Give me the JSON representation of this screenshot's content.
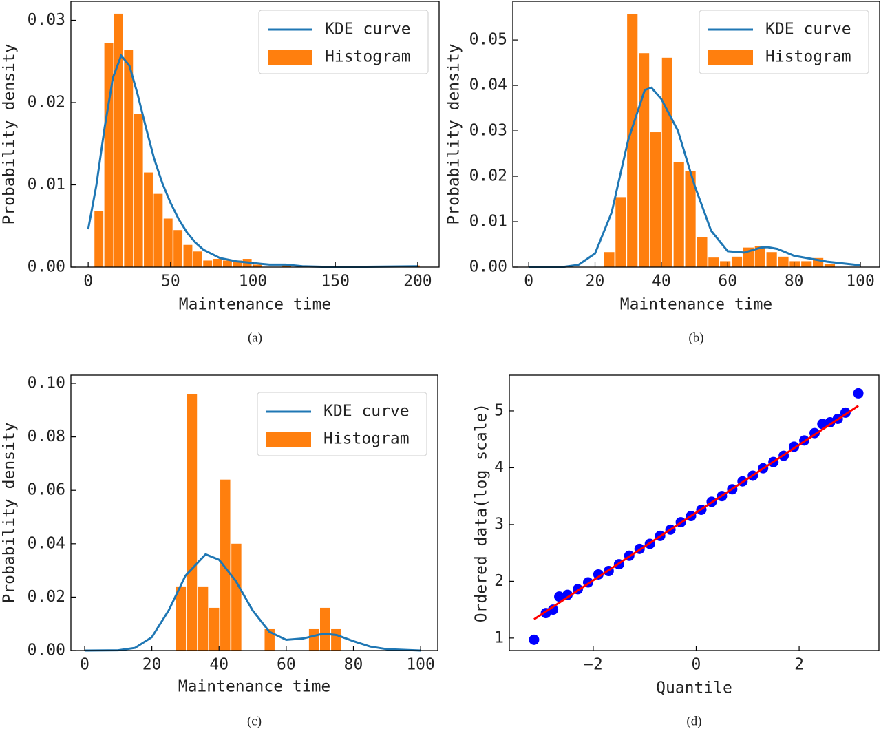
{
  "chart_data": [
    {
      "type": "histogram",
      "caption": "(a)",
      "xlabel": "Maintenance time",
      "ylabel": "Probability density",
      "xlim": [
        -10.5,
        213
      ],
      "ylim": [
        0,
        0.0323
      ],
      "xticks": [
        0,
        50,
        100,
        150,
        200
      ],
      "yticks": [
        {
          "value": 0,
          "label": "0.00"
        },
        {
          "value": 0.01,
          "label": "0.01"
        },
        {
          "value": 0.02,
          "label": "0.02"
        },
        {
          "value": 0.03,
          "label": "0.03"
        }
      ],
      "legend": "upper right",
      "series": [
        {
          "name": "KDE curve",
          "type": "line",
          "color": "#1f77b4",
          "x": [
            0,
            5,
            10,
            15,
            20,
            25,
            30,
            35,
            40,
            45,
            50,
            55,
            60,
            65,
            70,
            80,
            90,
            100,
            110,
            120,
            130,
            150,
            200
          ],
          "values": [
            0.0046,
            0.01,
            0.017,
            0.023,
            0.0257,
            0.0245,
            0.021,
            0.017,
            0.0132,
            0.0102,
            0.0078,
            0.0058,
            0.0042,
            0.003,
            0.0021,
            0.0011,
            0.0007,
            0.0005,
            0.0003,
            0.0003,
            0.0001,
            0,
            0.0001
          ]
        },
        {
          "name": "Histogram",
          "type": "bar",
          "color": "#ff7f0e",
          "bins": [
            3.5,
            9.5,
            15.5,
            21.5,
            27.5,
            33.5,
            39.5,
            45.5,
            51.5,
            57.5,
            63.5,
            69.5,
            75.5,
            81.5,
            87.5,
            93.5,
            99.5,
            105.5,
            111.5,
            117.5,
            123.5,
            129.5,
            135.5,
            141.5,
            147.5,
            153.5,
            159.5,
            165.5,
            171.5,
            177.5,
            183.5,
            189.5,
            195.5,
            201.5
          ],
          "values": [
            0.0068,
            0.0272,
            0.0308,
            0.0264,
            0.0186,
            0.0115,
            0.0089,
            0.0059,
            0.0045,
            0.0027,
            0.0019,
            0.0008,
            0.001,
            0.0008,
            0.0008,
            0.001,
            0.0003,
            0,
            0,
            0.0004,
            0,
            0,
            0,
            0,
            0,
            0,
            0,
            0,
            0,
            0,
            0,
            0,
            0.0002
          ]
        }
      ]
    },
    {
      "type": "histogram",
      "caption": "(b)",
      "xlabel": "Maintenance time",
      "ylabel": "Probability density",
      "xlim": [
        -4.8,
        105.8
      ],
      "ylim": [
        0,
        0.0585
      ],
      "xticks": [
        0,
        20,
        40,
        60,
        80,
        100
      ],
      "yticks": [
        {
          "value": 0,
          "label": "0.00"
        },
        {
          "value": 0.01,
          "label": "0.01"
        },
        {
          "value": 0.02,
          "label": "0.02"
        },
        {
          "value": 0.03,
          "label": "0.03"
        },
        {
          "value": 0.04,
          "label": "0.04"
        },
        {
          "value": 0.05,
          "label": "0.05"
        }
      ],
      "legend": "upper right",
      "series": [
        {
          "name": "KDE curve",
          "type": "line",
          "color": "#1f77b4",
          "x": [
            0,
            10,
            15,
            20,
            25,
            30,
            35,
            37,
            40,
            45,
            50,
            55,
            60,
            65,
            70,
            72,
            75,
            80,
            90,
            100
          ],
          "values": [
            0,
            0,
            0.0005,
            0.003,
            0.012,
            0.028,
            0.039,
            0.0395,
            0.037,
            0.03,
            0.018,
            0.008,
            0.0035,
            0.0032,
            0.0043,
            0.0044,
            0.004,
            0.0025,
            0.0012,
            0.0004
          ]
        },
        {
          "name": "Histogram",
          "type": "bar",
          "color": "#ff7f0e",
          "bins": [
            22.5,
            26,
            29.5,
            33,
            36.5,
            40,
            43.5,
            47,
            50.5,
            54,
            57.5,
            61,
            64.5,
            68,
            71.5,
            75,
            78.5,
            82,
            85.5,
            89,
            92.5
          ],
          "values": [
            0.0033,
            0.0154,
            0.0557,
            0.0471,
            0.0297,
            0.0461,
            0.0231,
            0.0212,
            0.0066,
            0.0021,
            0.0013,
            0.0023,
            0.0043,
            0.0046,
            0.0033,
            0.0023,
            0.0013,
            0.0013,
            0.002,
            0.0007
          ]
        }
      ]
    },
    {
      "type": "histogram",
      "caption": "(c)",
      "xlabel": "Maintenance time",
      "ylabel": "Probability density",
      "xlim": [
        -4.1,
        105.1
      ],
      "ylim": [
        0,
        0.1031
      ],
      "xticks": [
        0,
        20,
        40,
        60,
        80,
        100
      ],
      "yticks": [
        {
          "value": 0,
          "label": "0.00"
        },
        {
          "value": 0.02,
          "label": "0.02"
        },
        {
          "value": 0.04,
          "label": "0.04"
        },
        {
          "value": 0.06,
          "label": "0.06"
        },
        {
          "value": 0.08,
          "label": "0.08"
        },
        {
          "value": 0.1,
          "label": "0.10"
        }
      ],
      "legend": "upper right",
      "series": [
        {
          "name": "KDE curve",
          "type": "line",
          "color": "#1f77b4",
          "x": [
            0,
            10,
            15,
            20,
            25,
            30,
            36,
            40,
            45,
            50,
            55,
            60,
            65,
            70,
            72,
            75,
            80,
            85,
            90,
            100
          ],
          "values": [
            0,
            0.0001,
            0.001,
            0.005,
            0.015,
            0.028,
            0.036,
            0.034,
            0.026,
            0.015,
            0.007,
            0.004,
            0.0045,
            0.006,
            0.0062,
            0.0058,
            0.0035,
            0.0015,
            0.0005,
            0
          ]
        },
        {
          "name": "Histogram",
          "type": "bar",
          "color": "#ff7f0e",
          "bins": [
            27,
            30.3,
            33.6,
            36.9,
            40.2,
            43.5,
            46.8,
            50.1,
            53.4,
            56.7,
            60,
            63.3,
            66.6,
            69.9,
            73.2,
            76.5
          ],
          "values": [
            0.024,
            0.096,
            0.024,
            0.016,
            0.064,
            0.04,
            0,
            0,
            0.008,
            0,
            0,
            0,
            0.008,
            0.016,
            0.008
          ]
        }
      ]
    },
    {
      "type": "scatter",
      "caption": "(d)",
      "xlabel": "Quantile",
      "ylabel": "Ordered data(log scale)",
      "xlim": [
        -3.63,
        3.55
      ],
      "ylim": [
        0.78,
        5.63
      ],
      "xticks": [
        {
          "value": -2,
          "label": "−2"
        },
        0,
        2
      ],
      "yticks": [
        1,
        2,
        3,
        4,
        5
      ],
      "series": [
        {
          "type": "scatter",
          "color": "#0000ff",
          "x": [
            -3.15,
            -2.92,
            -2.78,
            -2.66,
            -2.5,
            -2.3,
            -2.1,
            -1.9,
            -1.7,
            -1.5,
            -1.3,
            -1.1,
            -0.9,
            -0.7,
            -0.5,
            -0.3,
            -0.1,
            0.1,
            0.3,
            0.5,
            0.7,
            0.9,
            1.1,
            1.3,
            1.5,
            1.7,
            1.9,
            2.1,
            2.3,
            2.45,
            2.6,
            2.75,
            2.9,
            3.15
          ],
          "values": [
            0.97,
            1.44,
            1.5,
            1.73,
            1.76,
            1.86,
            1.98,
            2.12,
            2.18,
            2.3,
            2.45,
            2.57,
            2.66,
            2.8,
            2.91,
            3.04,
            3.15,
            3.26,
            3.4,
            3.5,
            3.62,
            3.76,
            3.86,
            3.99,
            4.1,
            4.21,
            4.37,
            4.48,
            4.61,
            4.77,
            4.8,
            4.86,
            4.97,
            5.31
          ]
        },
        {
          "type": "line",
          "color": "#ff0000",
          "x": [
            -3.15,
            3.15
          ],
          "values": [
            1.33,
            5.09
          ]
        }
      ]
    }
  ]
}
